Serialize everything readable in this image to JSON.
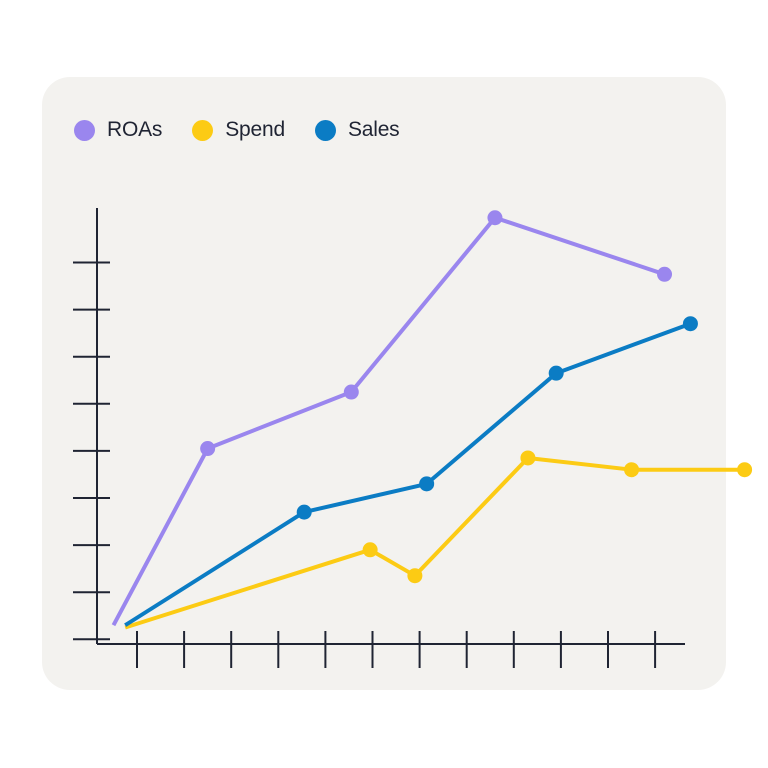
{
  "chart_data": {
    "type": "line",
    "title": "",
    "xlabel": "",
    "ylabel": "",
    "grid": false,
    "legend_position": "top-left",
    "x_tick_count": 12,
    "y_tick_count": 9,
    "xlim": [
      0,
      12.5
    ],
    "ylim": [
      0,
      9.3
    ],
    "series": [
      {
        "name": "ROAs",
        "color": "#9a86ee",
        "start": [
          -0.5,
          0.4
        ],
        "points": [
          [
            1.5,
            4.15
          ],
          [
            4.55,
            5.35
          ],
          [
            7.6,
            9.05
          ],
          [
            11.2,
            7.85
          ]
        ]
      },
      {
        "name": "Spend",
        "color": "#fccb14",
        "start": [
          -0.25,
          0.35
        ],
        "points": [
          [
            4.95,
            2.0
          ],
          [
            5.9,
            1.45
          ],
          [
            8.3,
            3.95
          ],
          [
            10.5,
            3.7
          ],
          [
            12.9,
            3.7
          ]
        ]
      },
      {
        "name": "Sales",
        "color": "#0b7cc4",
        "start": [
          -0.25,
          0.4
        ],
        "points": [
          [
            3.55,
            2.8
          ],
          [
            6.15,
            3.4
          ],
          [
            8.9,
            5.75
          ],
          [
            11.75,
            6.8
          ]
        ]
      }
    ]
  }
}
